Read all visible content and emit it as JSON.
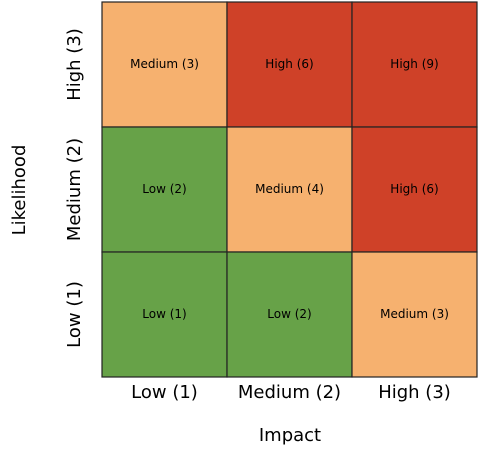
{
  "x_axis": {
    "title": "Impact",
    "labels": [
      "Low (1)",
      "Medium (2)",
      "High (3)"
    ]
  },
  "y_axis": {
    "title": "Likelihood",
    "labels": [
      "High (3)",
      "Medium (2)",
      "Low (1)"
    ]
  },
  "cells": [
    [
      {
        "label": "Medium (3)",
        "color": "#f6b16f"
      },
      {
        "label": "High (6)",
        "color": "#cf4128"
      },
      {
        "label": "High (9)",
        "color": "#cf4128"
      }
    ],
    [
      {
        "label": "Low (2)",
        "color": "#67a248"
      },
      {
        "label": "Medium (4)",
        "color": "#f6b16f"
      },
      {
        "label": "High (6)",
        "color": "#cf4128"
      }
    ],
    [
      {
        "label": "Low (1)",
        "color": "#67a248"
      },
      {
        "label": "Low (2)",
        "color": "#67a248"
      },
      {
        "label": "Medium (3)",
        "color": "#f6b16f"
      }
    ]
  ]
}
